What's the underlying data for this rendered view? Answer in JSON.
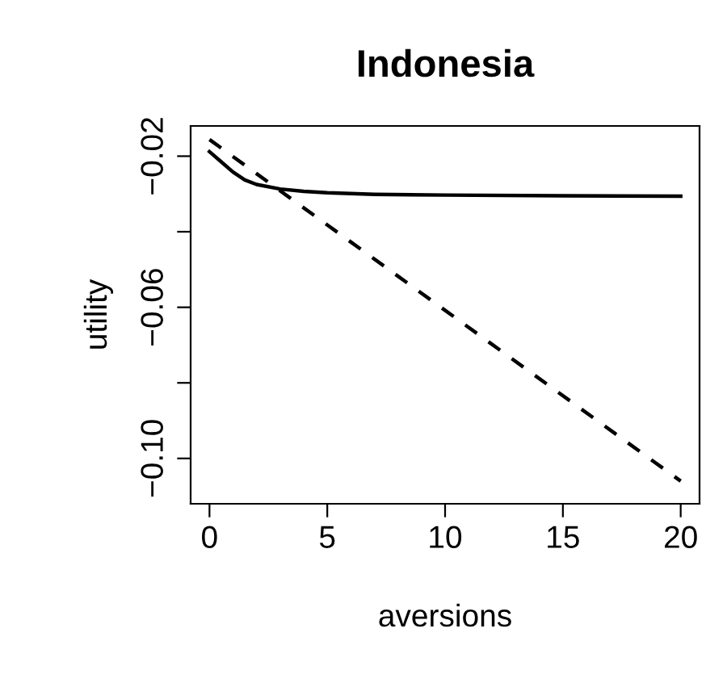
{
  "chart_data": {
    "type": "line",
    "title": "Indonesia",
    "xlabel": "aversions",
    "ylabel": "utility",
    "xlim": [
      -0.8,
      20.8
    ],
    "ylim": [
      -0.112,
      -0.012
    ],
    "xticks": [
      0,
      5,
      10,
      15,
      20
    ],
    "yticks": [
      -0.02,
      {
        "value": -0.04,
        "label": null
      },
      -0.06,
      {
        "value": -0.08,
        "label": null
      },
      {
        "value": -0.1,
        "label": "−0.10"
      }
    ],
    "grid": false,
    "legend": false,
    "series": [
      {
        "color": "#000000",
        "line_style": "solid",
        "x": [
          0,
          0.5,
          1,
          1.5,
          2,
          3,
          4,
          5,
          7,
          10,
          15,
          20
        ],
        "values": [
          -0.0188,
          -0.0215,
          -0.0242,
          -0.0263,
          -0.0275,
          -0.0287,
          -0.0293,
          -0.0297,
          -0.0301,
          -0.0303,
          -0.0305,
          -0.0306
        ]
      },
      {
        "color": "#000000",
        "line_style": "dashed",
        "x": [
          0,
          20
        ],
        "values": [
          -0.0156,
          -0.106
        ]
      }
    ]
  }
}
